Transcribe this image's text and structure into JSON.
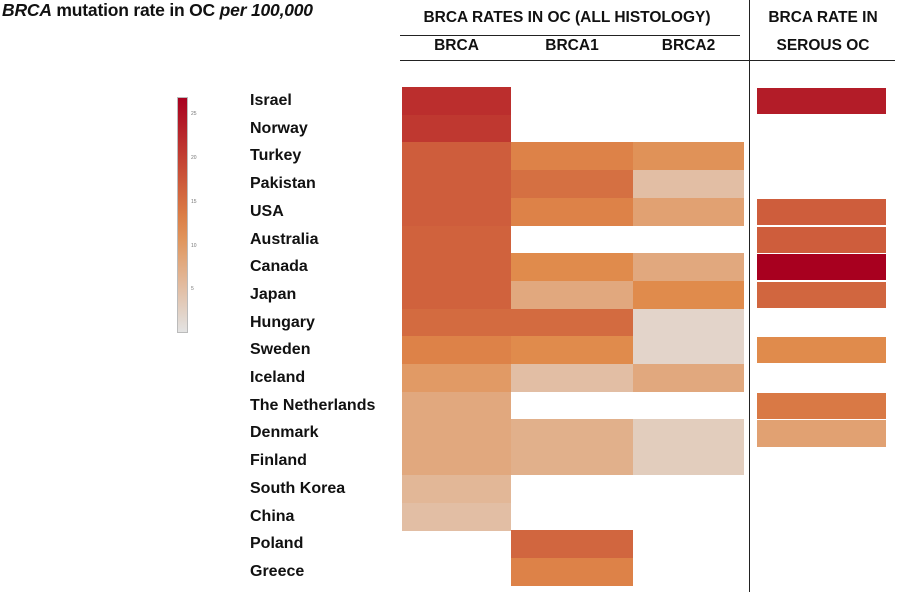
{
  "title": {
    "italic_start": "BRCA",
    "middle": " mutation rate in OC ",
    "italic_end": "per 100,000"
  },
  "headers": {
    "all_histology": "BRCA RATES IN OC (ALL HISTOLOGY)",
    "serous_line1": "BRCA RATE IN",
    "serous_line2": "SEROUS OC"
  },
  "colors": {
    "low": "#e3e3e3",
    "mid": "#e08a4a",
    "high": "#a8001f"
  },
  "colorbar": {
    "ticks": [
      "25",
      "20",
      "15",
      "10",
      "5"
    ],
    "range": [
      0,
      27
    ]
  },
  "chart_data": {
    "type": "heatmap",
    "title": "BRCA mutation rate in OC per 100,000",
    "columns": [
      "BRCA",
      "BRCA1",
      "BRCA2",
      "SEROUS"
    ],
    "column_labels": [
      "BRCA",
      "BRCA1",
      "BRCA2",
      ""
    ],
    "rows": [
      "Israel",
      "Norway",
      "Turkey",
      "Pakistan",
      "USA",
      "Australia",
      "Canada",
      "Japan",
      "Hungary",
      "Sweden",
      "Iceland",
      "The Netherlands",
      "Denmark",
      "Finland",
      "South Korea",
      "China",
      "Poland",
      "Greece"
    ],
    "values": [
      [
        22,
        null,
        null,
        24
      ],
      [
        21,
        null,
        null,
        null
      ],
      [
        17,
        13,
        11,
        null
      ],
      [
        17,
        15,
        5,
        null
      ],
      [
        17,
        13,
        9,
        17
      ],
      [
        16.5,
        null,
        null,
        17
      ],
      [
        16.5,
        12,
        8,
        27
      ],
      [
        16.5,
        8,
        12,
        16
      ],
      [
        15.5,
        15.5,
        2,
        null
      ],
      [
        13,
        12,
        2,
        12
      ],
      [
        10,
        5,
        8,
        null
      ],
      [
        8,
        null,
        null,
        14
      ],
      [
        8,
        7,
        3,
        9
      ],
      [
        8,
        7,
        3,
        null
      ],
      [
        6,
        null,
        null,
        null
      ],
      [
        5,
        null,
        null,
        null
      ],
      [
        null,
        16,
        null,
        null
      ],
      [
        null,
        13,
        null,
        null
      ]
    ],
    "value_range": [
      0,
      27
    ]
  }
}
